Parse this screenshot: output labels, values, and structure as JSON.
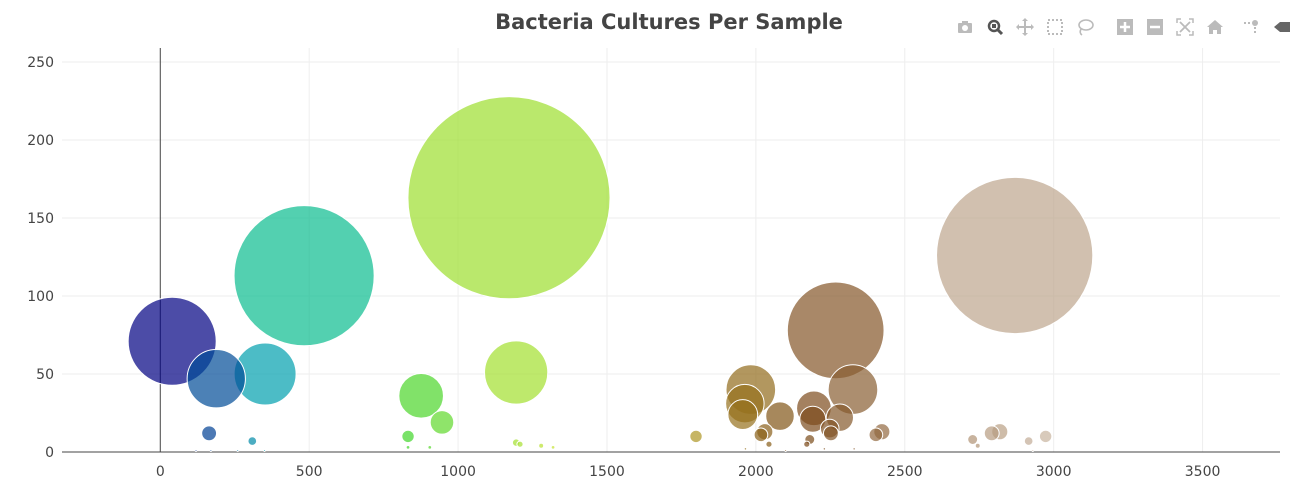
{
  "chart_data": {
    "type": "scatter",
    "mode": "bubble",
    "title": "Bacteria Cultures Per Sample",
    "xlabel": "",
    "ylabel": "",
    "xlim": [
      -330,
      3760
    ],
    "ylim": [
      0,
      259
    ],
    "x_ticks": [
      0,
      500,
      1000,
      1500,
      2000,
      2500,
      3000,
      3500
    ],
    "y_ticks": [
      0,
      50,
      100,
      150,
      200,
      250
    ],
    "grid": true,
    "colorscale": "Earth",
    "color_by": "x",
    "marker_opacity": 0.7,
    "points": [
      {
        "x": 40,
        "y": 71
      },
      {
        "x": 188,
        "y": 47
      },
      {
        "x": 352,
        "y": 50
      },
      {
        "x": 483,
        "y": 113
      },
      {
        "x": 164,
        "y": 12
      },
      {
        "x": 309,
        "y": 7
      },
      {
        "x": 1171,
        "y": 163
      },
      {
        "x": 1195,
        "y": 51
      },
      {
        "x": 876,
        "y": 36
      },
      {
        "x": 946,
        "y": 19
      },
      {
        "x": 832,
        "y": 10
      },
      {
        "x": 1195,
        "y": 6
      },
      {
        "x": 1208,
        "y": 5
      },
      {
        "x": 1279,
        "y": 4
      },
      {
        "x": 1319,
        "y": 3
      },
      {
        "x": 1799,
        "y": 10
      },
      {
        "x": 1983,
        "y": 40
      },
      {
        "x": 1963,
        "y": 31
      },
      {
        "x": 1956,
        "y": 24
      },
      {
        "x": 2081,
        "y": 23
      },
      {
        "x": 2268,
        "y": 78
      },
      {
        "x": 2326,
        "y": 40
      },
      {
        "x": 2195,
        "y": 28
      },
      {
        "x": 2191,
        "y": 21
      },
      {
        "x": 2282,
        "y": 22
      },
      {
        "x": 2248,
        "y": 15
      },
      {
        "x": 2252,
        "y": 12
      },
      {
        "x": 2030,
        "y": 13
      },
      {
        "x": 2017,
        "y": 11
      },
      {
        "x": 2044,
        "y": 5
      },
      {
        "x": 2181,
        "y": 8
      },
      {
        "x": 2171,
        "y": 5
      },
      {
        "x": 2423,
        "y": 13
      },
      {
        "x": 2403,
        "y": 11
      },
      {
        "x": 2869,
        "y": 126
      },
      {
        "x": 2728,
        "y": 8
      },
      {
        "x": 2745,
        "y": 4
      },
      {
        "x": 2792,
        "y": 12
      },
      {
        "x": 2819,
        "y": 13
      },
      {
        "x": 2916,
        "y": 7
      },
      {
        "x": 2973,
        "y": 10
      },
      {
        "x": 905,
        "y": 3
      },
      {
        "x": 832,
        "y": 3
      },
      {
        "x": 120,
        "y": 1
      },
      {
        "x": 170,
        "y": 1
      },
      {
        "x": 260,
        "y": 1
      },
      {
        "x": 350,
        "y": 1
      },
      {
        "x": 1965,
        "y": 2
      },
      {
        "x": 2100,
        "y": 1
      },
      {
        "x": 2230,
        "y": 2
      },
      {
        "x": 2330,
        "y": 2
      },
      {
        "x": 2930,
        "y": 1
      }
    ]
  },
  "modebar": {
    "icons": [
      "camera-icon",
      "zoom-icon",
      "pan-icon",
      "box-select-icon",
      "lasso-icon",
      "zoom-in-icon",
      "zoom-out-icon",
      "autoscale-icon",
      "home-icon",
      "spike-lines-icon",
      "hover-closest-icon"
    ],
    "active": "zoom-icon"
  }
}
